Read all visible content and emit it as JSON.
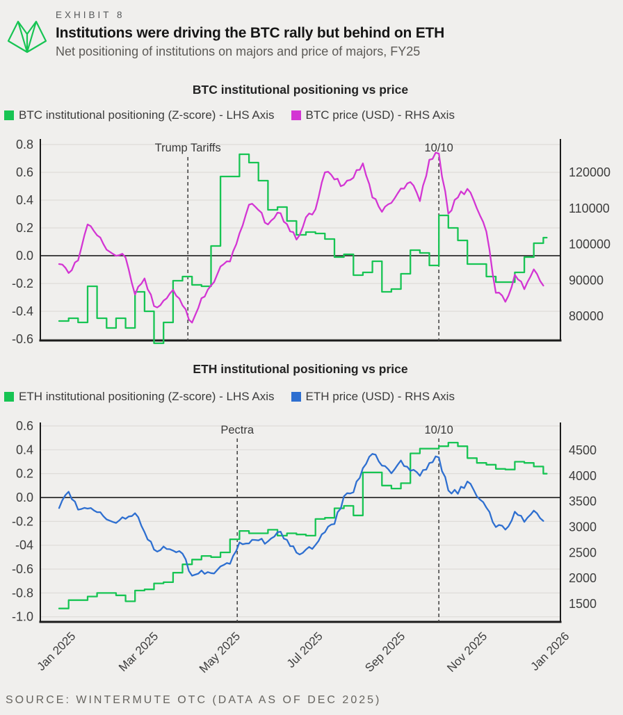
{
  "header": {
    "exhibit": "EXHIBIT 8",
    "title": "Institutions were driving the BTC rally but behind on ETH",
    "subtitle": "Net positioning of institutions on majors and price of majors, FY25"
  },
  "source": "SOURCE: WINTERMUTE OTC (DATA AS OF DEC 2025)",
  "colors": {
    "green": "#17c453",
    "magenta": "#d335d3",
    "blue": "#2e6fd0",
    "grid": "#dedcd8",
    "zero": "#2b2b2b",
    "axis": "#1b1b1b",
    "annotation": "#474747",
    "logo": "#17c453"
  },
  "x_axis": {
    "tick_labels": [
      "Jan 2025",
      "Mar 2025",
      "May 2025",
      "Jul 2025",
      "Sep 2025",
      "Nov 2025",
      "Jan 2026"
    ],
    "tick_months": [
      0,
      2,
      4,
      6,
      8,
      10,
      12
    ]
  },
  "chart_data": [
    {
      "type": "line",
      "title": "BTC institutional positioning vs price",
      "legend": [
        {
          "label": "BTC institutional positioning (Z-score) - LHS Axis",
          "color_key": "green"
        },
        {
          "label": "BTC price (USD) - RHS Axis",
          "color_key": "magenta"
        }
      ],
      "x_start_month": 0,
      "x_step_month": 0.23077,
      "x_range_months": [
        0,
        12
      ],
      "grid": true,
      "lhs": {
        "ticks": [
          "0.8",
          "0.6",
          "0.4",
          "0.2",
          "0.0",
          "-0.2",
          "-0.4",
          "-0.6"
        ],
        "tick_values": [
          0.8,
          0.6,
          0.4,
          0.2,
          0,
          -0.2,
          -0.4,
          -0.6
        ],
        "range": [
          -0.64,
          0.89
        ]
      },
      "rhs": {
        "ticks": [
          "120000",
          "110000",
          "100000",
          "90000",
          "80000"
        ],
        "tick_values": [
          120000,
          110000,
          100000,
          90000,
          80000
        ],
        "range": [
          72000,
          131000
        ]
      },
      "annotations": [
        {
          "label": "Trump Tariffs",
          "month": 3.13
        },
        {
          "label": "10/10",
          "month": 9.23
        }
      ],
      "series": [
        {
          "name": "BTC institutional positioning (Z-score)",
          "axis": "lhs",
          "color_key": "green",
          "style": "step",
          "wiggle": 0,
          "values": [
            -0.47,
            -0.45,
            -0.48,
            -0.22,
            -0.45,
            -0.52,
            -0.45,
            -0.52,
            -0.26,
            -0.4,
            -0.63,
            -0.48,
            -0.18,
            -0.15,
            -0.21,
            -0.22,
            0.07,
            0.57,
            0.57,
            0.73,
            0.67,
            0.54,
            0.33,
            0.35,
            0.25,
            0.15,
            0.17,
            0.16,
            0.12,
            -0.01,
            0.01,
            -0.14,
            -0.12,
            -0.04,
            -0.26,
            -0.24,
            -0.13,
            0.04,
            0.02,
            -0.07,
            0.29,
            0.2,
            0.11,
            -0.06,
            -0.06,
            -0.15,
            -0.19,
            -0.19,
            -0.12,
            -0.01,
            0.09,
            0.13
          ]
        },
        {
          "name": "BTC price (USD)",
          "axis": "rhs",
          "color_key": "magenta",
          "style": "noisy",
          "wiggle": 900,
          "values": [
            94500,
            92000,
            95500,
            105500,
            102500,
            98500,
            96800,
            96300,
            86000,
            90500,
            82800,
            84300,
            87300,
            83000,
            78200,
            85000,
            88500,
            93800,
            95200,
            103000,
            111000,
            109500,
            105500,
            108800,
            105600,
            101300,
            107500,
            109700,
            120000,
            118000,
            116500,
            118500,
            122500,
            113000,
            109000,
            111500,
            115500,
            117300,
            112000,
            123500,
            125200,
            108500,
            113000,
            115400,
            110000,
            103500,
            86500,
            84000,
            91500,
            87500,
            93000,
            88500
          ]
        }
      ]
    },
    {
      "type": "line",
      "title": "ETH institutional positioning vs price",
      "legend": [
        {
          "label": "ETH institutional positioning (Z-score) - LHS Axis",
          "color_key": "green"
        },
        {
          "label": "ETH price (USD) - RHS Axis",
          "color_key": "blue"
        }
      ],
      "x_start_month": 0,
      "x_step_month": 0.23077,
      "x_range_months": [
        0,
        12
      ],
      "grid": true,
      "lhs": {
        "ticks": [
          "0.6",
          "0.4",
          "0.2",
          "0.0",
          "-0.2",
          "-04",
          "-0.6",
          "-0.8",
          "-1.0"
        ],
        "tick_values": [
          0.6,
          0.4,
          0.2,
          0,
          -0.2,
          -0.4,
          -0.6,
          -0.8,
          -1.0
        ],
        "range": [
          -1.04,
          0.68
        ]
      },
      "rhs": {
        "ticks": [
          "4500",
          "4000",
          "3500",
          "3000",
          "2500",
          "2000",
          "1500"
        ],
        "tick_values": [
          4500,
          4000,
          3500,
          3000,
          2500,
          2000,
          1500
        ],
        "range": [
          1150,
          4850
        ]
      },
      "annotations": [
        {
          "label": "Pectra",
          "month": 4.33
        },
        {
          "label": "10/10",
          "month": 9.23
        }
      ],
      "series": [
        {
          "name": "ETH institutional positioning (Z-score)",
          "axis": "lhs",
          "color_key": "green",
          "style": "step",
          "wiggle": 0,
          "values": [
            -0.93,
            -0.86,
            -0.86,
            -0.83,
            -0.8,
            -0.8,
            -0.82,
            -0.87,
            -0.78,
            -0.77,
            -0.72,
            -0.71,
            -0.63,
            -0.56,
            -0.52,
            -0.49,
            -0.5,
            -0.46,
            -0.35,
            -0.28,
            -0.3,
            -0.3,
            -0.27,
            -0.32,
            -0.3,
            -0.31,
            -0.32,
            -0.18,
            -0.17,
            -0.09,
            -0.07,
            -0.15,
            0.21,
            0.21,
            0.1,
            0.075,
            0.12,
            0.37,
            0.41,
            0.41,
            0.43,
            0.46,
            0.43,
            0.33,
            0.29,
            0.275,
            0.24,
            0.235,
            0.3,
            0.29,
            0.26,
            0.2
          ]
        },
        {
          "name": "ETH price (USD)",
          "axis": "rhs",
          "color_key": "blue",
          "style": "noisy",
          "wiggle": 60,
          "values": [
            3370,
            3690,
            3340,
            3360,
            3290,
            3150,
            3080,
            3160,
            3270,
            2900,
            2560,
            2620,
            2540,
            2480,
            2050,
            2150,
            2100,
            2230,
            2280,
            2700,
            2680,
            2740,
            2720,
            2900,
            2750,
            2500,
            2560,
            2650,
            2900,
            3060,
            3600,
            3680,
            4150,
            4430,
            4200,
            4050,
            4300,
            4100,
            4000,
            4250,
            4360,
            3715,
            3650,
            3890,
            3600,
            3380,
            3000,
            2950,
            3300,
            3100,
            3320,
            3120
          ]
        }
      ]
    }
  ]
}
